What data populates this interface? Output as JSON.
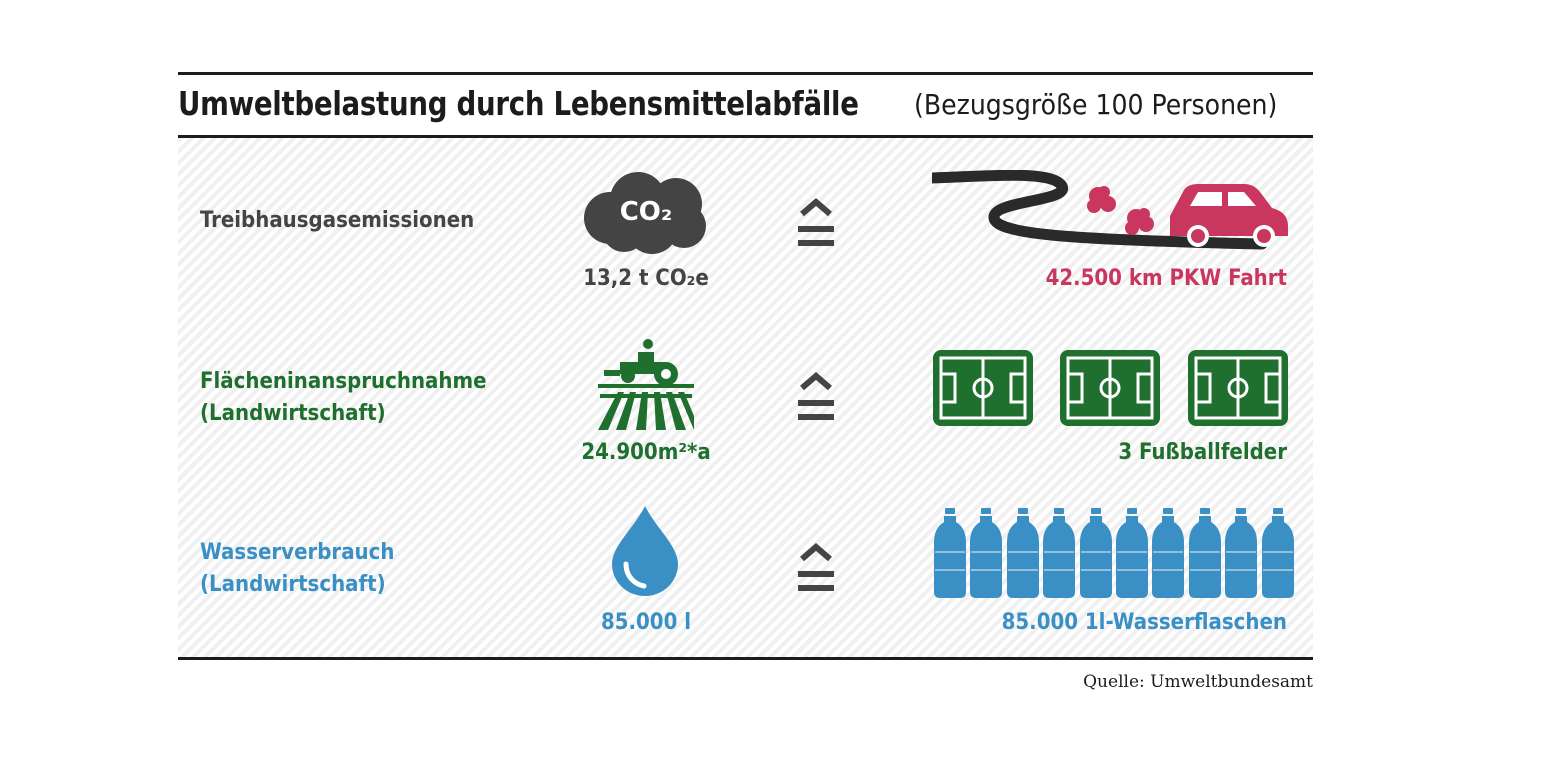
{
  "title": {
    "main": "Umweltbelastung durch Lebensmittelabfälle",
    "sub": "(Bezugsgröße 100 Personen)"
  },
  "rows": [
    {
      "label_lines": [
        "Treibhausgasemissionen"
      ],
      "value": "13,2 t CO₂e",
      "icon": "co2-cloud-icon",
      "icon_text": "CO₂",
      "equivalent": "42.500 km PKW Fahrt",
      "equivalent_icon": "car-on-road-icon",
      "color": "#444444",
      "equivalent_color": "#c9365e"
    },
    {
      "label_lines": [
        "Flächeninanspruchnahme",
        "(Landwirtschaft)"
      ],
      "value": "24.900m²*a",
      "icon": "tractor-field-icon",
      "equivalent": "3 Fußballfelder",
      "equivalent_icon": "football-field-icon",
      "color": "#1f6f2e",
      "equivalent_color": "#1f6f2e"
    },
    {
      "label_lines": [
        "Wasserverbrauch",
        "(Landwirtschaft)"
      ],
      "value": "85.000 l",
      "icon": "water-drop-icon",
      "equivalent": "85.000 1l-Wasserflaschen",
      "equivalent_icon": "water-bottle-icon",
      "color": "#3a8fc4",
      "equivalent_color": "#3a8fc4"
    }
  ],
  "equivalence_symbol": "≙",
  "source": "Quelle: Umweltbundesamt"
}
